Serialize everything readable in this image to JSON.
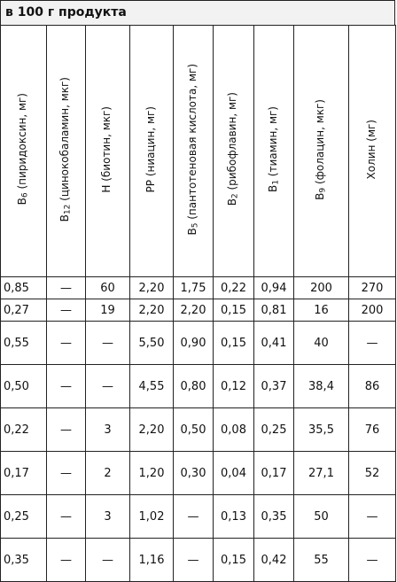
{
  "title": "в 100 г продукта",
  "columns": [
    {
      "sym": "B",
      "sub": "6",
      "rest": " (пиридоксин, мг)"
    },
    {
      "sym": "B",
      "sub": "12",
      "rest": " (цинокобаламин, мкг)"
    },
    {
      "sym": "H",
      "sub": "",
      "rest": " (биотин, мкг)"
    },
    {
      "sym": "PP",
      "sub": "",
      "rest": " (ниацин, мг)"
    },
    {
      "sym": "B",
      "sub": "5",
      "rest": " (пантотеновая кислота, мг)"
    },
    {
      "sym": "B",
      "sub": "2",
      "rest": " (рибофлавин, мг)"
    },
    {
      "sym": "B",
      "sub": "1",
      "rest": " (тиамин, мг)"
    },
    {
      "sym": "B",
      "sub": "9",
      "rest": " (фолацин, мкг)"
    },
    {
      "sym": "Холин",
      "sub": "",
      "rest": " (мг)"
    }
  ],
  "rows": [
    [
      "0,85",
      "—",
      "60",
      "2,20",
      "1,75",
      "0,22",
      "0,94",
      "200",
      "270"
    ],
    [
      "0,27",
      "—",
      "19",
      "2,20",
      "2,20",
      "0,15",
      "0,81",
      "16",
      "200"
    ],
    [
      "0,55",
      "—",
      "—",
      "5,50",
      "0,90",
      "0,15",
      "0,41",
      "40",
      "—"
    ],
    [
      "0,50",
      "—",
      "—",
      "4,55",
      "0,80",
      "0,12",
      "0,37",
      "38,4",
      "86"
    ],
    [
      "0,22",
      "—",
      "3",
      "2,20",
      "0,50",
      "0,08",
      "0,25",
      "35,5",
      "76"
    ],
    [
      "0,17",
      "—",
      "2",
      "1,20",
      "0,30",
      "0,04",
      "0,17",
      "27,1",
      "52"
    ],
    [
      "0,25",
      "—",
      "3",
      "1,02",
      "—",
      "0,13",
      "0,35",
      "50",
      "—"
    ],
    [
      "0,35",
      "—",
      "—",
      "1,16",
      "—",
      "0,15",
      "0,42",
      "55",
      "—"
    ]
  ]
}
